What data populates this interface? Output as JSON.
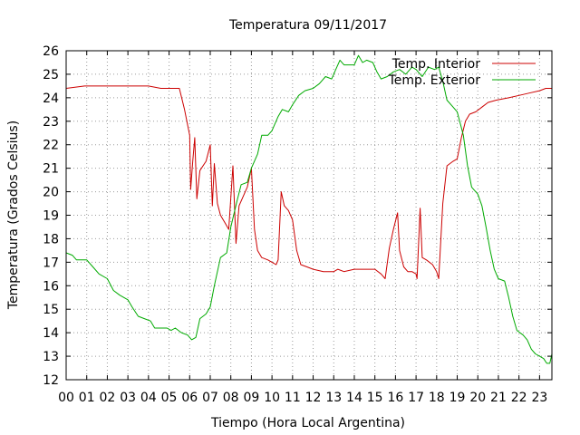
{
  "chart_data": {
    "type": "line",
    "title": "Temperatura 09/11/2017",
    "xlabel": "Tiempo (Hora Local Argentina)",
    "ylabel": "Temperatura (Grados Celsius)",
    "xlim": [
      0,
      23.6
    ],
    "ylim": [
      12,
      26
    ],
    "x_ticks": [
      "00",
      "01",
      "02",
      "03",
      "04",
      "05",
      "06",
      "07",
      "08",
      "09",
      "10",
      "11",
      "12",
      "13",
      "14",
      "15",
      "16",
      "17",
      "18",
      "19",
      "20",
      "21",
      "22",
      "23"
    ],
    "y_ticks": [
      12,
      13,
      14,
      15,
      16,
      17,
      18,
      19,
      20,
      21,
      22,
      23,
      24,
      25,
      26
    ],
    "grid": true,
    "legend_position": "top-right",
    "series": [
      {
        "name": "Temp. Interior",
        "color": "#cc0000",
        "points": [
          [
            0,
            24.4
          ],
          [
            0.9,
            24.5
          ],
          [
            2,
            24.5
          ],
          [
            3,
            24.5
          ],
          [
            4,
            24.5
          ],
          [
            4.6,
            24.4
          ],
          [
            5.5,
            24.4
          ],
          [
            5.75,
            23.5
          ],
          [
            6,
            22.4
          ],
          [
            6.05,
            20.1
          ],
          [
            6.15,
            21.3
          ],
          [
            6.25,
            22.3
          ],
          [
            6.35,
            19.7
          ],
          [
            6.5,
            20.9
          ],
          [
            6.8,
            21.3
          ],
          [
            7.0,
            22.0
          ],
          [
            7.1,
            19.4
          ],
          [
            7.2,
            21.2
          ],
          [
            7.35,
            19.5
          ],
          [
            7.5,
            19.0
          ],
          [
            7.7,
            18.7
          ],
          [
            7.9,
            18.4
          ],
          [
            8.1,
            21.1
          ],
          [
            8.25,
            17.8
          ],
          [
            8.4,
            19.4
          ],
          [
            8.6,
            19.8
          ],
          [
            8.8,
            20.2
          ],
          [
            9.0,
            21.0
          ],
          [
            9.15,
            18.4
          ],
          [
            9.3,
            17.5
          ],
          [
            9.5,
            17.2
          ],
          [
            9.8,
            17.1
          ],
          [
            10.0,
            17.0
          ],
          [
            10.2,
            16.9
          ],
          [
            10.3,
            17.1
          ],
          [
            10.45,
            20.0
          ],
          [
            10.6,
            19.4
          ],
          [
            10.8,
            19.2
          ],
          [
            11.0,
            18.8
          ],
          [
            11.2,
            17.5
          ],
          [
            11.4,
            16.9
          ],
          [
            11.7,
            16.8
          ],
          [
            12.0,
            16.7
          ],
          [
            12.5,
            16.6
          ],
          [
            13.0,
            16.6
          ],
          [
            13.2,
            16.7
          ],
          [
            13.5,
            16.6
          ],
          [
            14.0,
            16.7
          ],
          [
            14.5,
            16.7
          ],
          [
            15.0,
            16.7
          ],
          [
            15.3,
            16.5
          ],
          [
            15.5,
            16.3
          ],
          [
            15.7,
            17.6
          ],
          [
            15.9,
            18.4
          ],
          [
            16.1,
            19.1
          ],
          [
            16.2,
            17.5
          ],
          [
            16.4,
            16.8
          ],
          [
            16.6,
            16.6
          ],
          [
            16.8,
            16.6
          ],
          [
            17.0,
            16.5
          ],
          [
            17.05,
            16.3
          ],
          [
            17.2,
            19.3
          ],
          [
            17.3,
            17.2
          ],
          [
            17.5,
            17.1
          ],
          [
            17.8,
            16.9
          ],
          [
            18.0,
            16.6
          ],
          [
            18.1,
            16.3
          ],
          [
            18.3,
            19.5
          ],
          [
            18.5,
            21.1
          ],
          [
            18.8,
            21.3
          ],
          [
            19.0,
            21.4
          ],
          [
            19.2,
            22.3
          ],
          [
            19.4,
            23.0
          ],
          [
            19.6,
            23.3
          ],
          [
            19.9,
            23.4
          ],
          [
            20.2,
            23.6
          ],
          [
            20.5,
            23.8
          ],
          [
            20.9,
            23.9
          ],
          [
            21.5,
            24.0
          ],
          [
            22.0,
            24.1
          ],
          [
            22.5,
            24.2
          ],
          [
            23.0,
            24.3
          ],
          [
            23.3,
            24.4
          ],
          [
            23.6,
            24.4
          ]
        ]
      },
      {
        "name": "Temp. Exterior",
        "color": "#00aa00",
        "points": [
          [
            0,
            17.4
          ],
          [
            0.3,
            17.3
          ],
          [
            0.5,
            17.1
          ],
          [
            1,
            17.1
          ],
          [
            1.3,
            16.8
          ],
          [
            1.6,
            16.5
          ],
          [
            2,
            16.3
          ],
          [
            2.3,
            15.8
          ],
          [
            2.6,
            15.6
          ],
          [
            3,
            15.4
          ],
          [
            3.2,
            15.1
          ],
          [
            3.5,
            14.7
          ],
          [
            3.8,
            14.6
          ],
          [
            4.1,
            14.5
          ],
          [
            4.3,
            14.2
          ],
          [
            4.6,
            14.2
          ],
          [
            4.9,
            14.2
          ],
          [
            5.1,
            14.1
          ],
          [
            5.3,
            14.2
          ],
          [
            5.6,
            14.0
          ],
          [
            5.9,
            13.9
          ],
          [
            6.1,
            13.7
          ],
          [
            6.3,
            13.8
          ],
          [
            6.5,
            14.6
          ],
          [
            6.8,
            14.8
          ],
          [
            7.0,
            15.1
          ],
          [
            7.2,
            16.0
          ],
          [
            7.5,
            17.2
          ],
          [
            7.8,
            17.4
          ],
          [
            8.0,
            18.5
          ],
          [
            8.3,
            19.6
          ],
          [
            8.5,
            20.3
          ],
          [
            8.8,
            20.4
          ],
          [
            9.0,
            21.0
          ],
          [
            9.3,
            21.6
          ],
          [
            9.5,
            22.4
          ],
          [
            9.8,
            22.4
          ],
          [
            10.0,
            22.6
          ],
          [
            10.3,
            23.2
          ],
          [
            10.5,
            23.5
          ],
          [
            10.8,
            23.4
          ],
          [
            11.0,
            23.7
          ],
          [
            11.3,
            24.1
          ],
          [
            11.6,
            24.3
          ],
          [
            12.0,
            24.4
          ],
          [
            12.3,
            24.6
          ],
          [
            12.6,
            24.9
          ],
          [
            12.9,
            24.8
          ],
          [
            13.1,
            25.2
          ],
          [
            13.3,
            25.6
          ],
          [
            13.5,
            25.4
          ],
          [
            13.8,
            25.4
          ],
          [
            14.0,
            25.4
          ],
          [
            14.2,
            25.8
          ],
          [
            14.4,
            25.5
          ],
          [
            14.6,
            25.6
          ],
          [
            14.9,
            25.5
          ],
          [
            15.1,
            25.1
          ],
          [
            15.3,
            24.8
          ],
          [
            15.6,
            24.9
          ],
          [
            15.9,
            25.1
          ],
          [
            16.2,
            25.2
          ],
          [
            16.5,
            25.0
          ],
          [
            16.8,
            25.3
          ],
          [
            17.0,
            25.2
          ],
          [
            17.3,
            24.9
          ],
          [
            17.6,
            25.3
          ],
          [
            17.9,
            25.2
          ],
          [
            18.1,
            25.3
          ],
          [
            18.3,
            24.7
          ],
          [
            18.5,
            23.9
          ],
          [
            18.8,
            23.6
          ],
          [
            19.0,
            23.4
          ],
          [
            19.3,
            22.4
          ],
          [
            19.5,
            21.1
          ],
          [
            19.7,
            20.2
          ],
          [
            20.0,
            19.9
          ],
          [
            20.2,
            19.4
          ],
          [
            20.4,
            18.5
          ],
          [
            20.6,
            17.5
          ],
          [
            20.8,
            16.7
          ],
          [
            21.0,
            16.3
          ],
          [
            21.3,
            16.2
          ],
          [
            21.5,
            15.5
          ],
          [
            21.7,
            14.7
          ],
          [
            21.9,
            14.1
          ],
          [
            22.2,
            13.9
          ],
          [
            22.4,
            13.7
          ],
          [
            22.6,
            13.3
          ],
          [
            22.8,
            13.1
          ],
          [
            23.0,
            13.0
          ],
          [
            23.2,
            12.9
          ],
          [
            23.35,
            12.7
          ],
          [
            23.5,
            12.7
          ],
          [
            23.6,
            13.1
          ]
        ]
      }
    ]
  }
}
